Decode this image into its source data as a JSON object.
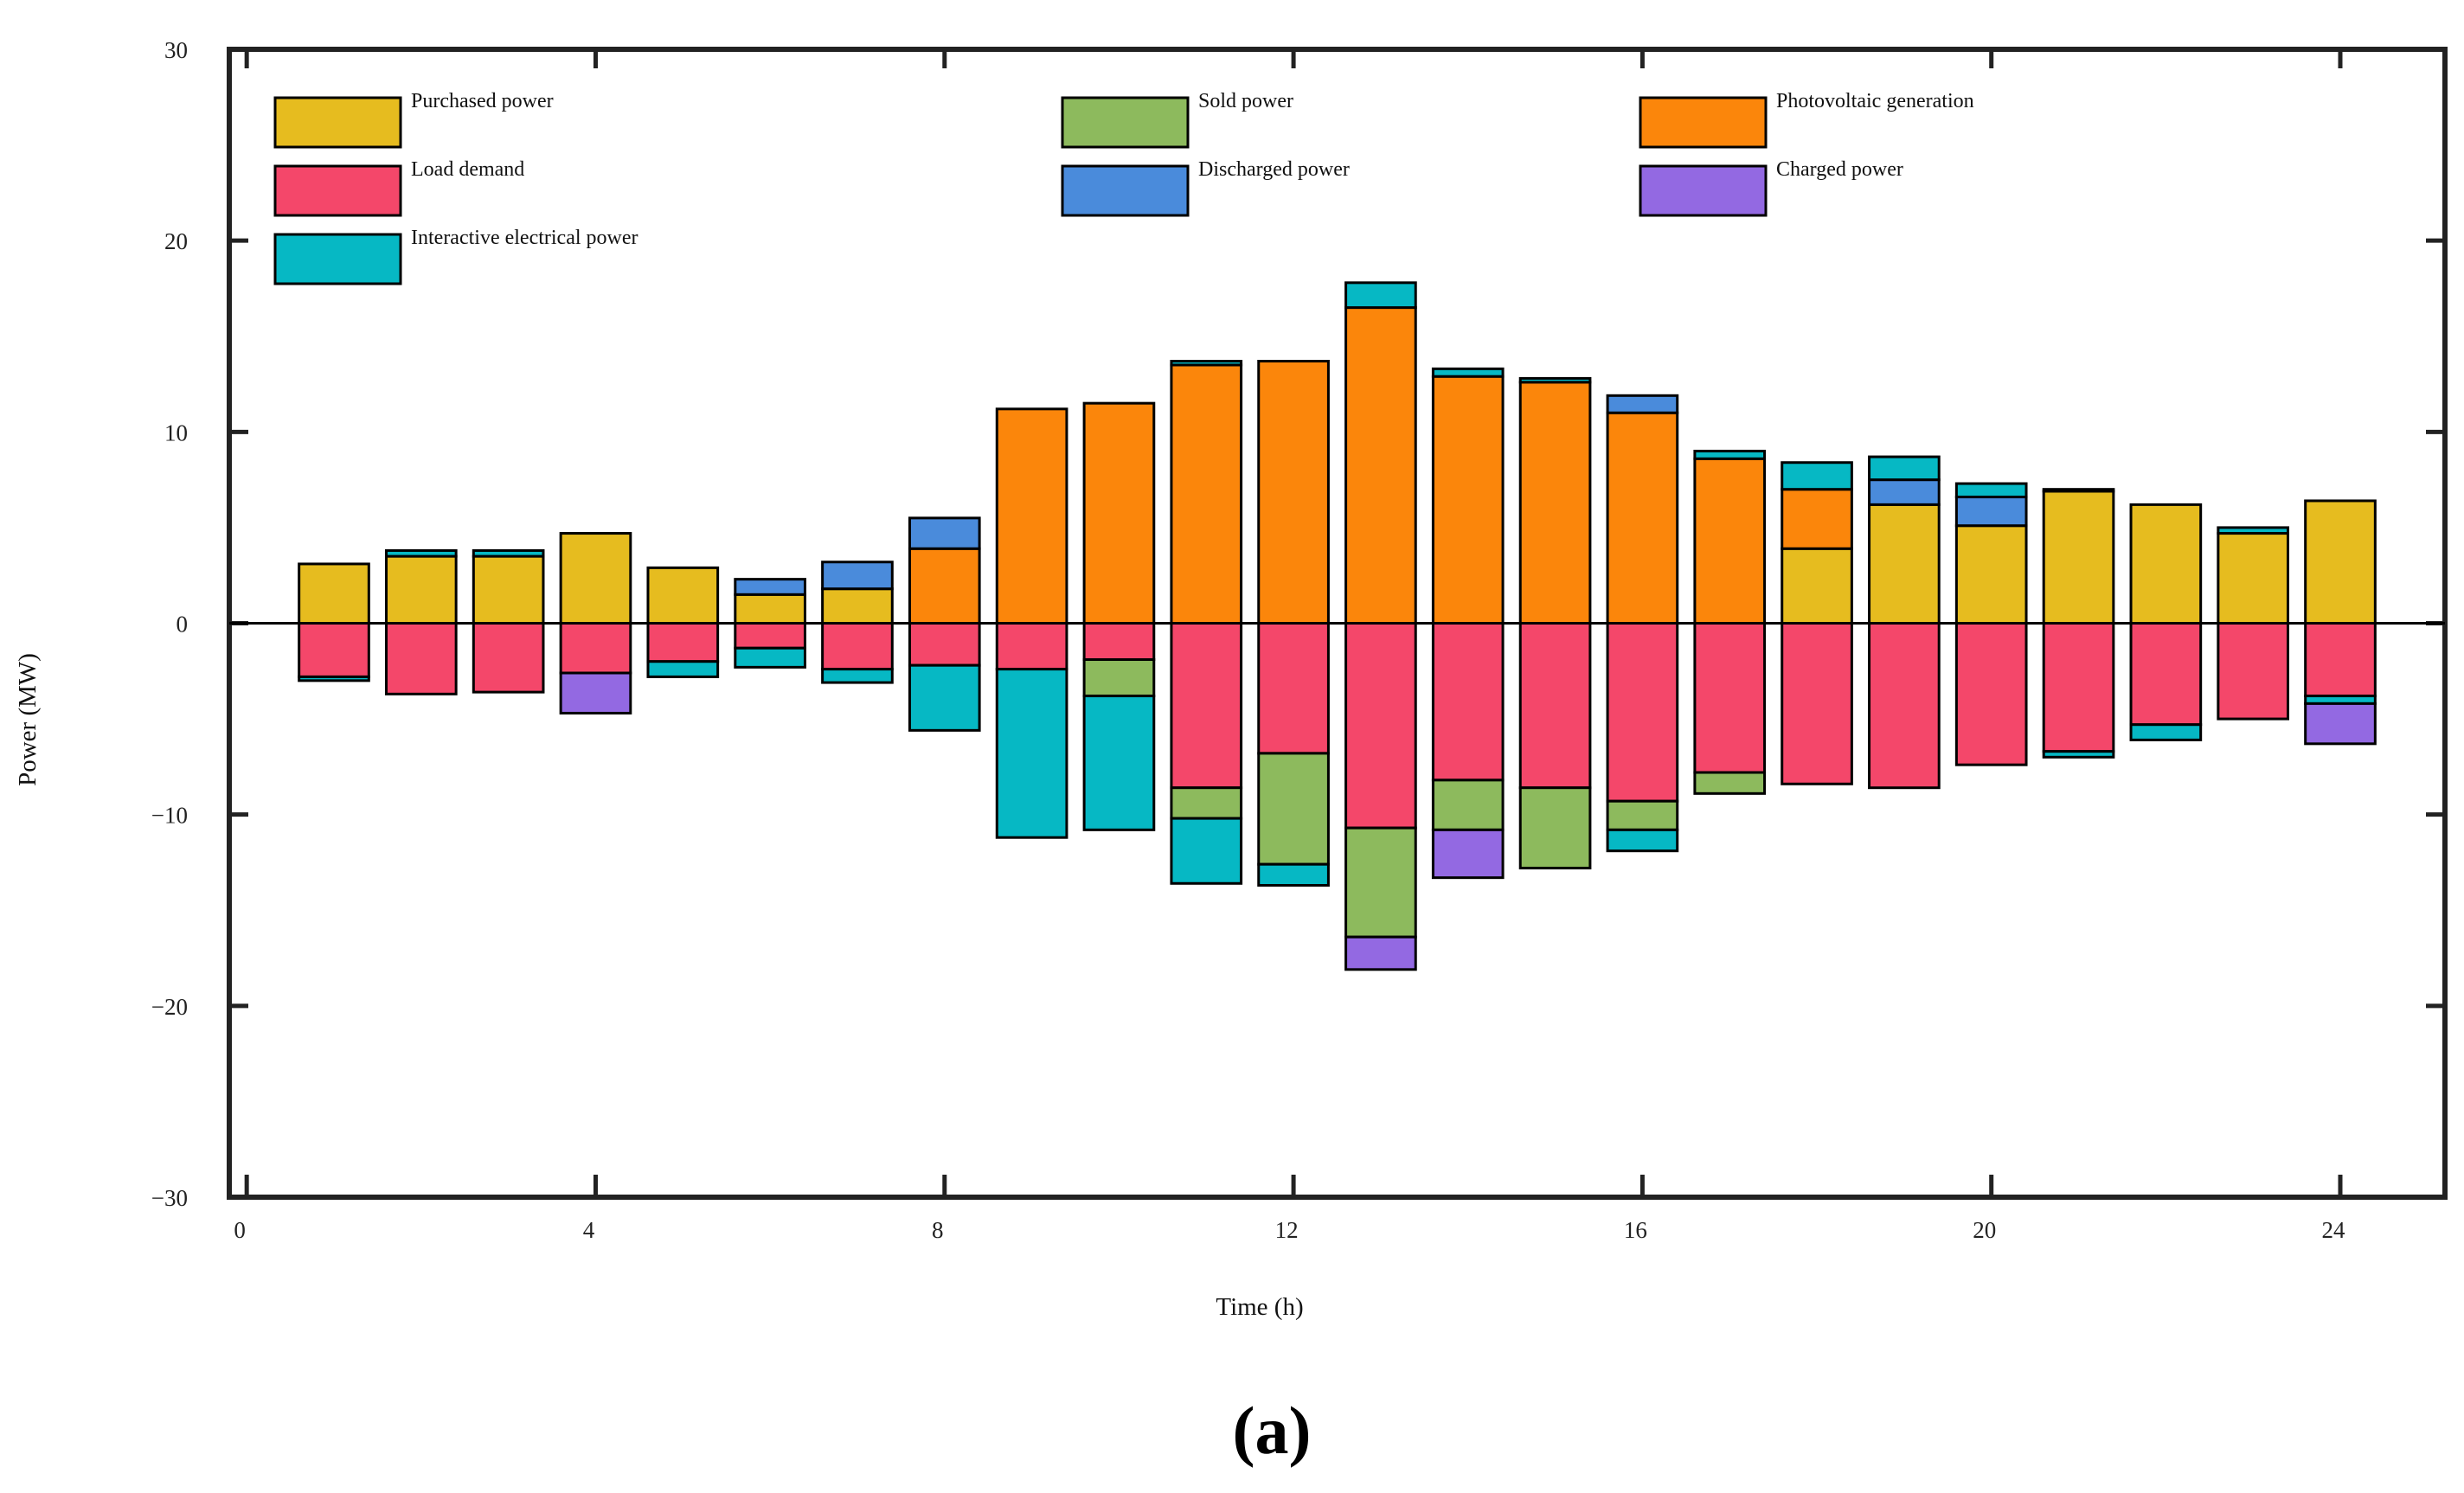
{
  "panel_label": "(a)",
  "chart_data": {
    "type": "bar",
    "stacking": "diverging-stacked",
    "title": "",
    "xlabel": "Time (h)",
    "ylabel": "Power (MW)",
    "xlim": [
      -0.2,
      25.2
    ],
    "ylim": [
      -30,
      30
    ],
    "xticks": [
      0,
      4,
      8,
      12,
      16,
      20,
      24
    ],
    "yticks": [
      -30,
      -20,
      -10,
      0,
      10,
      20,
      30
    ],
    "ytick_labels": [
      "−30",
      "−20",
      "−10",
      "0",
      "10",
      "20",
      "30"
    ],
    "xtick_labels": [
      "0",
      "4",
      "8",
      "12",
      "16",
      "20",
      "24"
    ],
    "legend_position": "top-left",
    "categories": [
      1,
      2,
      3,
      4,
      5,
      6,
      7,
      8,
      9,
      10,
      11,
      12,
      13,
      14,
      15,
      16,
      17,
      18,
      19,
      20,
      21,
      22,
      23,
      24
    ],
    "series": [
      {
        "name": "Purchased power",
        "color": "#E6BC1F",
        "direction": "positive",
        "values": [
          3.1,
          3.5,
          3.5,
          4.7,
          2.9,
          1.5,
          1.8,
          0,
          0,
          0,
          0,
          0,
          0,
          0,
          0,
          0,
          0,
          3.9,
          6.2,
          5.1,
          6.9,
          6.2,
          4.7,
          6.4
        ]
      },
      {
        "name": "Photovoltaic generation",
        "color": "#FB860B",
        "direction": "positive",
        "values": [
          0,
          0,
          0,
          0,
          0,
          0,
          0,
          3.9,
          11.2,
          11.5,
          13.5,
          13.7,
          16.5,
          12.9,
          12.6,
          11.0,
          8.6,
          3.1,
          0,
          0,
          0,
          0,
          0,
          0
        ]
      },
      {
        "name": "Discharged power",
        "color": "#4A8BDB",
        "direction": "positive",
        "values": [
          0,
          0,
          0,
          0,
          0,
          0.8,
          1.4,
          1.6,
          0,
          0,
          0,
          0,
          0,
          0,
          0,
          0.9,
          0,
          0,
          1.3,
          1.5,
          0,
          0,
          0,
          0
        ]
      },
      {
        "name": "Interactive electrical power",
        "color": "#06B8C4",
        "direction": "positive",
        "values": [
          0,
          0.3,
          0.3,
          0,
          0,
          0,
          0,
          0,
          0,
          0,
          0.2,
          0,
          1.3,
          0.4,
          0.2,
          0,
          0.4,
          1.4,
          1.2,
          0.7,
          0.1,
          0,
          0.3,
          0
        ]
      },
      {
        "name": "Load demand",
        "color": "#F4476A",
        "direction": "negative",
        "values": [
          -2.8,
          -3.7,
          -3.6,
          -2.6,
          -2.0,
          -1.3,
          -2.4,
          -2.2,
          -2.4,
          -1.9,
          -8.6,
          -6.8,
          -10.7,
          -8.2,
          -8.6,
          -9.3,
          -7.8,
          -8.4,
          -8.6,
          -7.4,
          -6.7,
          -5.3,
          -5.0,
          -3.8
        ]
      },
      {
        "name": "Sold power",
        "color": "#8DBA5D",
        "direction": "negative",
        "values": [
          0,
          0,
          0,
          0,
          0,
          0,
          0,
          0,
          0,
          -1.9,
          -1.6,
          -5.8,
          -5.7,
          -2.6,
          -4.2,
          -1.5,
          -1.1,
          0,
          0,
          0,
          0,
          0,
          0,
          0
        ]
      },
      {
        "name": "Interactive electrical power",
        "color": "#06B8C4",
        "direction": "negative",
        "values": [
          -0.2,
          0,
          0,
          0,
          -0.8,
          -1.0,
          -0.7,
          -3.4,
          -8.8,
          -7.0,
          -3.4,
          -1.1,
          0,
          0,
          0,
          -1.1,
          0,
          0,
          0,
          0,
          -0.3,
          -0.8,
          0,
          -0.4
        ]
      },
      {
        "name": "Charged power",
        "color": "#9369E2",
        "direction": "negative",
        "values": [
          0,
          0,
          0,
          -2.1,
          0,
          0,
          0,
          0,
          0,
          0,
          0,
          0,
          -1.7,
          -2.5,
          0,
          0,
          0,
          0,
          0,
          0,
          0,
          0,
          0,
          -2.1
        ]
      }
    ],
    "legend": [
      {
        "label": "Purchased power",
        "color": "#E6BC1F"
      },
      {
        "label": "Sold power",
        "color": "#8DBA5D"
      },
      {
        "label": "Photovoltaic generation",
        "color": "#FB860B"
      },
      {
        "label": "Load demand",
        "color": "#F4476A"
      },
      {
        "label": "Discharged power",
        "color": "#4A8BDB"
      },
      {
        "label": "Charged power",
        "color": "#9369E2"
      },
      {
        "label": "Interactive electrical power",
        "color": "#06B8C4"
      }
    ]
  }
}
